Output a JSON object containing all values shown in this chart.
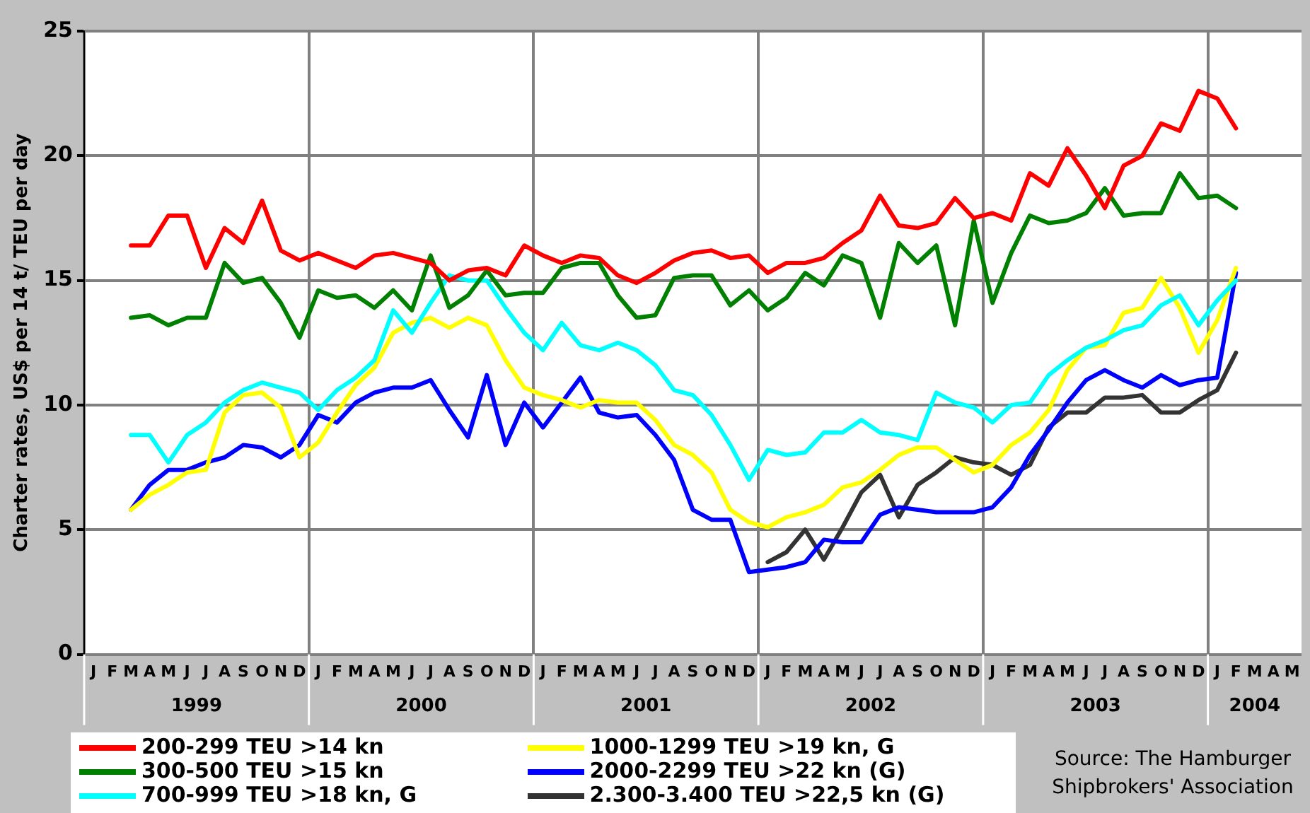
{
  "chart_data": {
    "type": "line",
    "ylabel": "Charter rates, US$ per 14 t/ TEU per day",
    "categories": [
      "J",
      "F",
      "M",
      "A",
      "M",
      "J",
      "J",
      "A",
      "S",
      "O",
      "N",
      "D",
      "J",
      "F",
      "M",
      "A",
      "M",
      "J",
      "J",
      "A",
      "S",
      "O",
      "N",
      "D",
      "J",
      "F",
      "M",
      "A",
      "M",
      "J",
      "J",
      "A",
      "S",
      "O",
      "N",
      "D",
      "J",
      "F",
      "M",
      "A",
      "M",
      "J",
      "J",
      "A",
      "S",
      "O",
      "N",
      "D",
      "J",
      "F",
      "M",
      "A",
      "M",
      "J",
      "J",
      "A",
      "S",
      "O",
      "N",
      "D",
      "J",
      "F",
      "M",
      "A",
      "M"
    ],
    "series": [
      {
        "name": "200-299 TEU >14 kn",
        "color": "#ff0000",
        "values": [
          null,
          null,
          16.4,
          16.4,
          17.6,
          17.6,
          15.5,
          17.1,
          16.5,
          18.2,
          16.2,
          15.8,
          16.1,
          15.8,
          15.5,
          16.0,
          16.1,
          15.9,
          15.7,
          15.0,
          15.4,
          15.5,
          15.2,
          16.4,
          16.0,
          15.7,
          16.0,
          15.9,
          15.2,
          14.9,
          15.3,
          15.8,
          16.1,
          16.2,
          15.9,
          16.0,
          15.3,
          15.7,
          15.7,
          15.9,
          16.5,
          17.0,
          18.4,
          17.2,
          17.1,
          17.3,
          18.3,
          17.5,
          17.7,
          17.4,
          19.3,
          18.8,
          20.3,
          19.2,
          17.9,
          19.6,
          20.0,
          21.3,
          21.0,
          22.6,
          22.3,
          21.1,
          null,
          null,
          null
        ]
      },
      {
        "name": "300-500 TEU >15 kn",
        "color": "#008000",
        "values": [
          null,
          null,
          13.5,
          13.6,
          13.2,
          13.5,
          13.5,
          15.7,
          14.9,
          15.1,
          14.1,
          12.7,
          14.6,
          14.3,
          14.4,
          13.9,
          14.6,
          13.8,
          16.0,
          13.9,
          14.4,
          15.4,
          14.4,
          14.5,
          14.5,
          15.5,
          15.7,
          15.7,
          14.4,
          13.5,
          13.6,
          15.1,
          15.2,
          15.2,
          14.0,
          14.6,
          13.8,
          14.3,
          15.3,
          14.8,
          16.0,
          15.7,
          13.5,
          16.5,
          15.7,
          16.4,
          13.2,
          17.4,
          14.1,
          16.1,
          17.6,
          17.3,
          17.4,
          17.7,
          18.7,
          17.6,
          17.7,
          17.7,
          19.3,
          18.3,
          18.4,
          17.9,
          null,
          null,
          null
        ]
      },
      {
        "name": "700-999 TEU >18 kn, G",
        "color": "#00ffff",
        "values": [
          null,
          null,
          8.8,
          8.8,
          7.7,
          8.8,
          9.3,
          10.1,
          10.6,
          10.9,
          10.7,
          10.5,
          9.8,
          10.6,
          11.1,
          11.8,
          13.8,
          12.9,
          14.1,
          15.2,
          15.0,
          15.0,
          13.9,
          12.9,
          12.2,
          13.3,
          12.4,
          12.2,
          12.5,
          12.2,
          11.6,
          10.6,
          10.4,
          9.6,
          8.4,
          7.0,
          8.2,
          8.0,
          8.1,
          8.9,
          8.9,
          9.4,
          8.9,
          8.8,
          8.6,
          10.5,
          10.1,
          9.9,
          9.3,
          10.0,
          10.1,
          11.2,
          11.8,
          12.3,
          12.6,
          13.0,
          13.2,
          14.0,
          14.4,
          13.2,
          14.2,
          15.0,
          null,
          null,
          null
        ]
      },
      {
        "name": "1000-1299 TEU >19 kn, G",
        "color": "#ffff00",
        "values": [
          null,
          null,
          5.8,
          6.4,
          6.8,
          7.3,
          7.4,
          9.7,
          10.4,
          10.5,
          9.9,
          7.9,
          8.5,
          9.7,
          10.8,
          11.5,
          12.9,
          13.3,
          13.5,
          13.1,
          13.5,
          13.2,
          11.8,
          10.7,
          10.4,
          10.2,
          9.9,
          10.2,
          10.1,
          10.1,
          9.4,
          8.4,
          8.0,
          7.3,
          5.8,
          5.3,
          5.1,
          5.5,
          5.7,
          6.0,
          6.7,
          6.9,
          7.4,
          8.0,
          8.3,
          8.3,
          7.8,
          7.3,
          7.6,
          8.4,
          8.9,
          9.8,
          11.4,
          12.3,
          12.4,
          13.7,
          13.9,
          15.1,
          13.9,
          12.1,
          13.4,
          15.5,
          null,
          null,
          null
        ]
      },
      {
        "name": "2000-2299 TEU >22 kn (G)",
        "color": "#0000ff",
        "values": [
          null,
          null,
          5.8,
          6.8,
          7.4,
          7.4,
          7.7,
          7.9,
          8.4,
          8.3,
          7.9,
          8.4,
          9.6,
          9.3,
          10.1,
          10.5,
          10.7,
          10.7,
          11.0,
          9.8,
          8.7,
          11.2,
          8.4,
          10.1,
          9.1,
          10.1,
          11.1,
          9.7,
          9.5,
          9.6,
          8.8,
          7.8,
          5.8,
          5.4,
          5.4,
          3.3,
          3.4,
          3.5,
          3.7,
          4.6,
          4.5,
          4.5,
          5.6,
          5.9,
          5.8,
          5.7,
          5.7,
          5.7,
          5.9,
          6.7,
          8.0,
          9.0,
          10.1,
          11.0,
          11.4,
          11.0,
          10.7,
          11.2,
          10.8,
          11.0,
          11.1,
          15.3,
          null,
          null,
          null
        ]
      },
      {
        "name": "2.300-3.400 TEU >22,5 kn (G)",
        "color": "#333333",
        "values": [
          null,
          null,
          null,
          null,
          null,
          null,
          null,
          null,
          null,
          null,
          null,
          null,
          null,
          null,
          null,
          null,
          null,
          null,
          null,
          null,
          null,
          null,
          null,
          null,
          null,
          null,
          null,
          null,
          null,
          null,
          null,
          null,
          null,
          null,
          null,
          null,
          3.7,
          4.1,
          5.0,
          3.8,
          5.1,
          6.5,
          7.2,
          5.5,
          6.8,
          7.3,
          7.9,
          7.7,
          7.6,
          7.2,
          7.6,
          9.1,
          9.7,
          9.7,
          10.3,
          10.3,
          10.4,
          9.7,
          9.7,
          10.2,
          10.6,
          12.1,
          null,
          null,
          null
        ]
      }
    ],
    "ylim": [
      0,
      25
    ],
    "yticks": [
      0,
      5,
      10,
      15,
      20,
      25
    ],
    "grid": true,
    "legend": "bottom",
    "marker": "none",
    "line_style": "solid",
    "annotations": [
      "1999",
      "2000",
      "2001",
      "2002",
      "2003",
      "2004",
      "Source: The Hamburger Shipbrokers' Association"
    ]
  }
}
